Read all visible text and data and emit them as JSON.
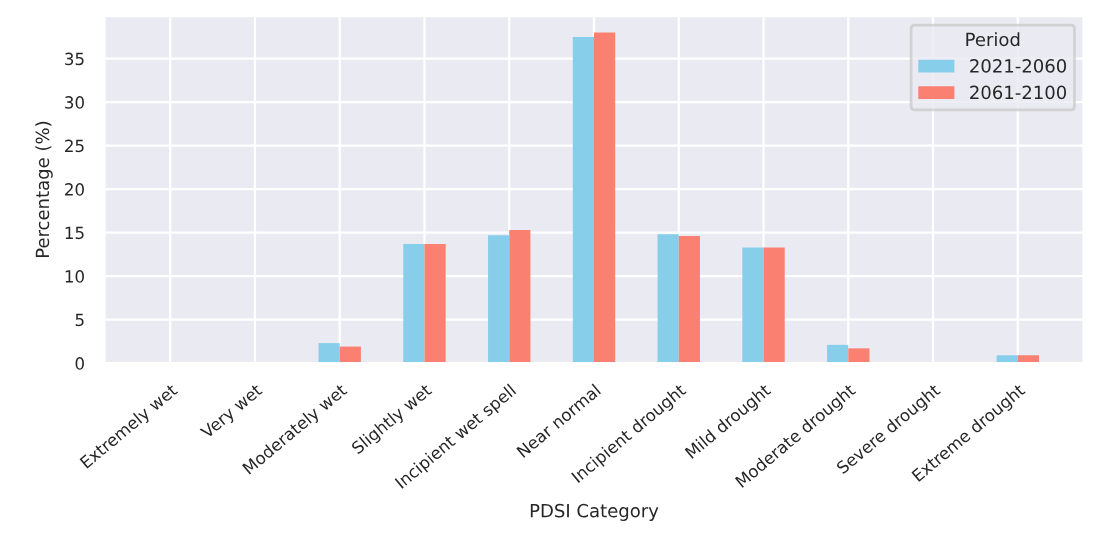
{
  "chart_data": {
    "type": "bar",
    "xlabel": "PDSI Category",
    "ylabel": "Percentage (%)",
    "legend_title": "Period",
    "legend": "top right",
    "grid": true,
    "categories": [
      "Extremely wet",
      "Very wet",
      "Moderately wet",
      "Slightly wet",
      "Incipient wet spell",
      "Near normal",
      "Incipient drought",
      "Mild drought",
      "Moderate drought",
      "Severe drought",
      "Extreme drought"
    ],
    "series": [
      {
        "name": "2021-2060",
        "color": "#87ceeb",
        "values": [
          0,
          0,
          2.3,
          13.7,
          14.7,
          37.5,
          14.8,
          13.3,
          2.1,
          0,
          0.9
        ]
      },
      {
        "name": "2061-2100",
        "color": "#fa8072",
        "values": [
          0,
          0,
          1.9,
          13.7,
          15.3,
          38.0,
          14.6,
          13.3,
          1.7,
          0,
          0.9
        ]
      }
    ],
    "ylim": [
      0,
      39.9
    ],
    "yticks": [
      0,
      5,
      10,
      15,
      20,
      25,
      30,
      35
    ]
  }
}
